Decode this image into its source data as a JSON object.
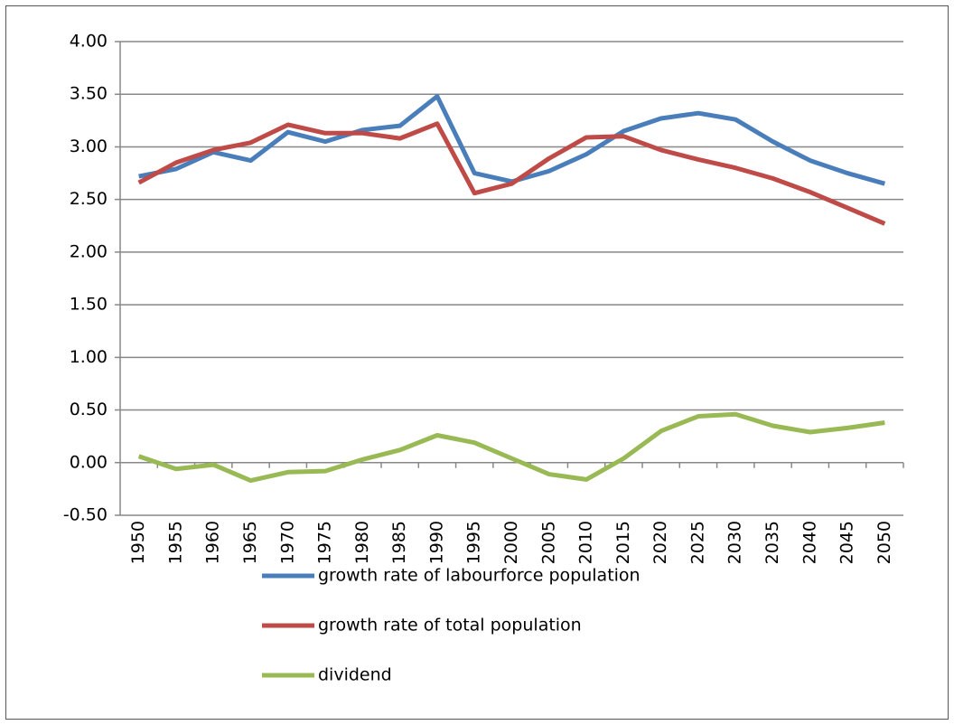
{
  "chart_data": {
    "type": "line",
    "categories": [
      "1950",
      "1955",
      "1960",
      "1965",
      "1970",
      "1975",
      "1980",
      "1985",
      "1990",
      "1995",
      "2000",
      "2005",
      "2010",
      "2015",
      "2020",
      "2025",
      "2030",
      "2035",
      "2040",
      "2045",
      "2050"
    ],
    "series": [
      {
        "name": "growth rate of labourforce population",
        "color": "#4a7ebb",
        "values": [
          2.72,
          2.79,
          2.95,
          2.87,
          3.14,
          3.05,
          3.16,
          3.2,
          3.48,
          2.75,
          2.67,
          2.77,
          2.93,
          3.15,
          3.27,
          3.32,
          3.26,
          3.05,
          2.87,
          2.75,
          2.65
        ]
      },
      {
        "name": "growth rate of total population",
        "color": "#be4b48",
        "values": [
          2.66,
          2.85,
          2.97,
          3.04,
          3.21,
          3.13,
          3.13,
          3.08,
          3.22,
          2.56,
          2.65,
          2.89,
          3.09,
          3.1,
          2.97,
          2.88,
          2.8,
          2.7,
          2.57,
          2.42,
          2.27
        ]
      },
      {
        "name": "dividend",
        "color": "#98b954",
        "values": [
          0.06,
          -0.06,
          -0.02,
          -0.17,
          -0.09,
          -0.08,
          0.03,
          0.12,
          0.26,
          0.19,
          0.04,
          -0.11,
          -0.16,
          0.04,
          0.3,
          0.44,
          0.46,
          0.35,
          0.29,
          0.33,
          0.38
        ]
      }
    ],
    "ylim": [
      -0.5,
      4.0
    ],
    "yticks": [
      {
        "value": -0.5,
        "label": "-0.50"
      },
      {
        "value": 0,
        "label": "0.00"
      },
      {
        "value": 0.5,
        "label": "0.50"
      },
      {
        "value": 1,
        "label": "1.00"
      },
      {
        "value": 1.5,
        "label": "1.50"
      },
      {
        "value": 2,
        "label": "2.00"
      },
      {
        "value": 2.5,
        "label": "2.50"
      },
      {
        "value": 3,
        "label": "3.00"
      },
      {
        "value": 3.5,
        "label": "3.50"
      },
      {
        "value": 4,
        "label": "4.00"
      }
    ],
    "grid": true
  }
}
